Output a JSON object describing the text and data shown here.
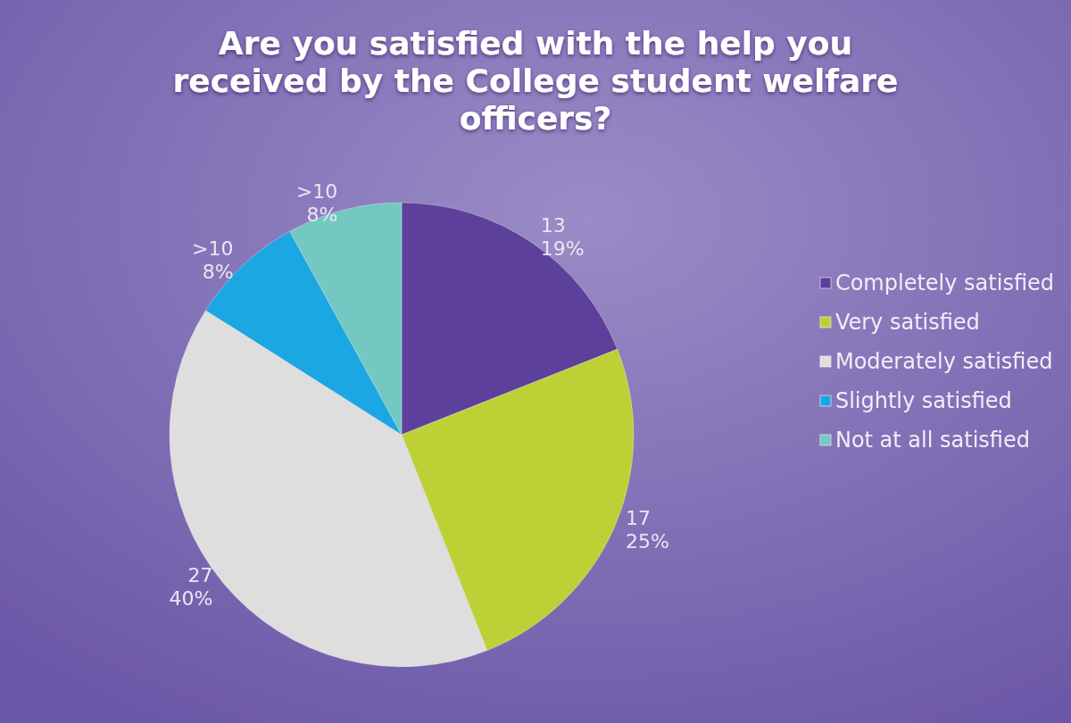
{
  "chart_data": {
    "type": "pie",
    "title": "Are you satisfied with the help you\nreceived by the College student welfare\nofficers?",
    "categories": [
      "Completely satisfied",
      "Very satisfied",
      "Moderately satisfied",
      "Slightly satisfied",
      "Not at all satisfied"
    ],
    "values": [
      19,
      25,
      40,
      8,
      8
    ],
    "value_labels": [
      "13\n19%",
      "17\n25%",
      "27\n40%",
      ">10\n8%",
      ">10\n8%"
    ],
    "colors": [
      "#5c409b",
      "#bdd136",
      "#dedede",
      "#1ba7e2",
      "#73c8c1"
    ],
    "legend": "right"
  }
}
